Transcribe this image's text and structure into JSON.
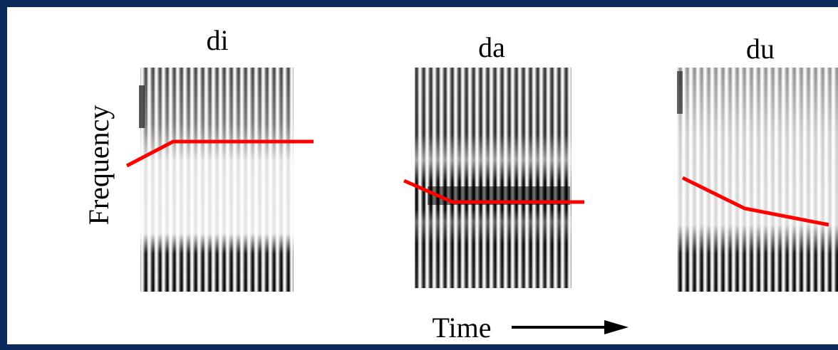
{
  "labels": {
    "panels": [
      "di",
      "da",
      "du"
    ],
    "y_axis": "Frequency",
    "x_axis": "Time"
  }
}
